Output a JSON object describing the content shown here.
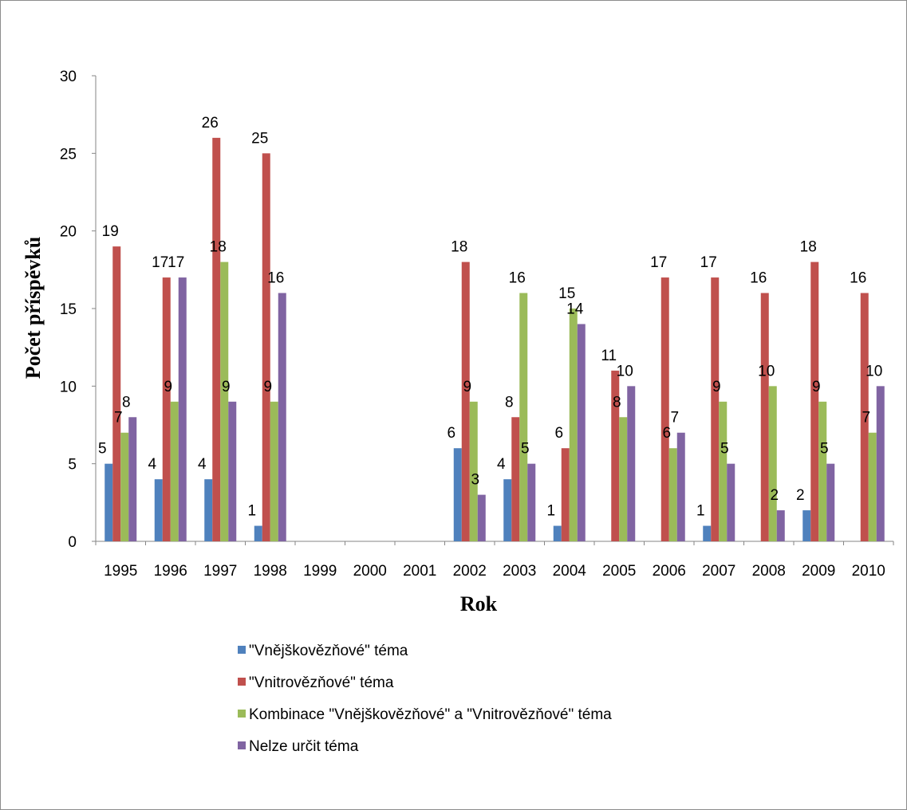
{
  "chart_data": {
    "type": "bar",
    "categories": [
      "1995",
      "1996",
      "1997",
      "1998",
      "1999",
      "2000",
      "2001",
      "2002",
      "2003",
      "2004",
      "2005",
      "2006",
      "2007",
      "2008",
      "2009",
      "2010"
    ],
    "series": [
      {
        "name": "\"Vnějškovězňové\" téma",
        "color": "#4f81bd",
        "values": [
          5,
          4,
          4,
          1,
          null,
          null,
          null,
          6,
          4,
          1,
          null,
          null,
          1,
          null,
          2,
          null
        ]
      },
      {
        "name": "\"Vnitrovězňové\" téma",
        "color": "#c0504d",
        "values": [
          19,
          17,
          26,
          25,
          null,
          null,
          null,
          18,
          8,
          6,
          11,
          17,
          17,
          16,
          18,
          16
        ]
      },
      {
        "name": "Kombinace \"Vnějškovězňové\" a \"Vnitrovězňové\" téma",
        "color": "#9bbb59",
        "values": [
          7,
          9,
          18,
          9,
          null,
          null,
          null,
          9,
          16,
          15,
          8,
          6,
          9,
          10,
          9,
          7
        ]
      },
      {
        "name": "Nelze určit téma",
        "color": "#8064a2",
        "values": [
          8,
          17,
          9,
          16,
          null,
          null,
          null,
          3,
          5,
          14,
          10,
          7,
          5,
          2,
          5,
          10
        ]
      }
    ],
    "xlabel": "Rok",
    "ylabel": "Počet příspěvků",
    "ylim": [
      0,
      30
    ],
    "yticks": [
      "0",
      "5",
      "10",
      "15",
      "20",
      "25",
      "30"
    ],
    "grid": false,
    "legend_position": "bottom"
  }
}
